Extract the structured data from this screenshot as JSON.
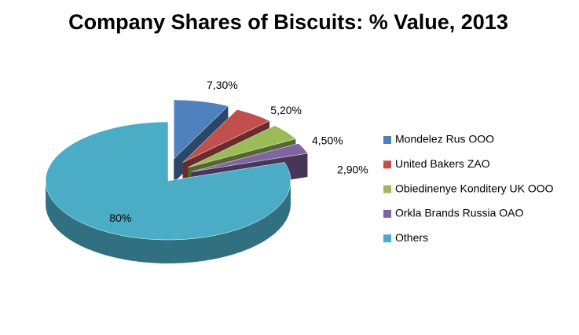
{
  "chart_data": {
    "type": "pie",
    "title": "Company Shares of Biscuits: % Value, 2013",
    "categories": [
      "Mondelez Rus OOO",
      "United Bakers ZAO",
      "Obiedinenye Konditery UK OOO",
      "Orkla Brands Russia OAO",
      "Others"
    ],
    "values": [
      7.3,
      5.2,
      4.5,
      2.9,
      80
    ],
    "value_labels": [
      "7,30%",
      "5,20%",
      "4,50%",
      "2,90%",
      "80%"
    ],
    "colors": [
      "#4f81bd",
      "#c0504d",
      "#9bbb59",
      "#8064a2",
      "#4bacc6"
    ],
    "legend": "right"
  }
}
